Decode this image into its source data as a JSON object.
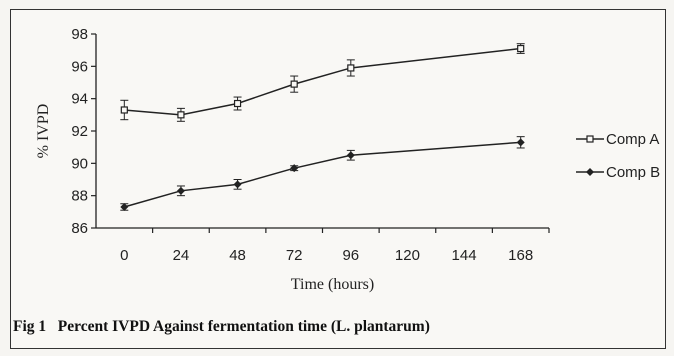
{
  "caption": {
    "label": "Fig 1",
    "text": "Percent IVPD Against fermentation time (L. plantarum)"
  },
  "chart_data": {
    "type": "line",
    "xlabel": "Time (hours)",
    "ylabel": "% IVPD",
    "x_ticks": [
      0,
      24,
      48,
      72,
      96,
      120,
      144,
      168
    ],
    "y_ticks": [
      86,
      88,
      90,
      92,
      94,
      96,
      98
    ],
    "xlim": [
      -12,
      180
    ],
    "ylim": [
      86,
      98
    ],
    "grid": false,
    "legend_position": "right",
    "series": [
      {
        "name": "Comp A",
        "marker": "open-square",
        "color": "#222222",
        "x": [
          0,
          24,
          48,
          72,
          96,
          168
        ],
        "y": [
          93.3,
          93.0,
          93.7,
          94.9,
          95.9,
          97.1
        ],
        "error": [
          0.6,
          0.4,
          0.4,
          0.5,
          0.5,
          0.3
        ]
      },
      {
        "name": "Comp B",
        "marker": "filled-diamond",
        "color": "#222222",
        "x": [
          0,
          24,
          48,
          72,
          96,
          168
        ],
        "y": [
          87.3,
          88.3,
          88.7,
          89.7,
          90.5,
          91.3
        ],
        "error": [
          0.2,
          0.3,
          0.3,
          0.15,
          0.3,
          0.35
        ]
      }
    ]
  }
}
